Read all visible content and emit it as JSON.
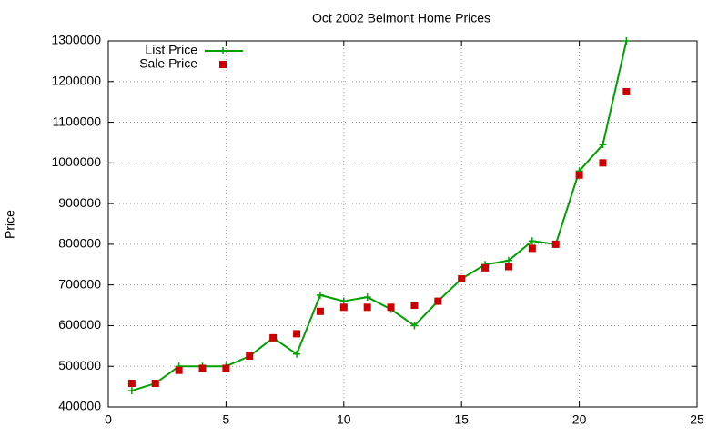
{
  "chart_data": {
    "type": "line",
    "title": "Oct 2002 Belmont Home Prices",
    "y_label": "Price",
    "x": [
      1,
      2,
      3,
      4,
      5,
      6,
      7,
      8,
      9,
      10,
      11,
      12,
      13,
      14,
      15,
      16,
      17,
      18,
      19,
      20,
      21,
      22
    ],
    "series": [
      {
        "name": "List Price",
        "type": "line",
        "color": "#00a000",
        "values": [
          440000,
          458000,
          500000,
          500000,
          500000,
          525000,
          570000,
          530000,
          675000,
          660000,
          670000,
          640000,
          600000,
          660000,
          715000,
          750000,
          760000,
          808000,
          800000,
          980000,
          1045000,
          1300000
        ]
      },
      {
        "name": "Sale Price",
        "type": "scatter",
        "color": "#cc0000",
        "values": [
          458000,
          458000,
          490000,
          495000,
          495000,
          525000,
          570000,
          580000,
          635000,
          645000,
          645000,
          645000,
          650000,
          660000,
          715000,
          742000,
          745000,
          790000,
          800000,
          970000,
          1000000,
          1175000
        ]
      }
    ],
    "xlim": [
      0,
      25
    ],
    "xticks": [
      0,
      5,
      10,
      15,
      20,
      25
    ],
    "ylim": [
      400000,
      1300000
    ],
    "yticks": [
      400000,
      500000,
      600000,
      700000,
      800000,
      900000,
      1000000,
      1100000,
      1200000,
      1300000
    ],
    "grid": true,
    "legend": "top-left"
  }
}
